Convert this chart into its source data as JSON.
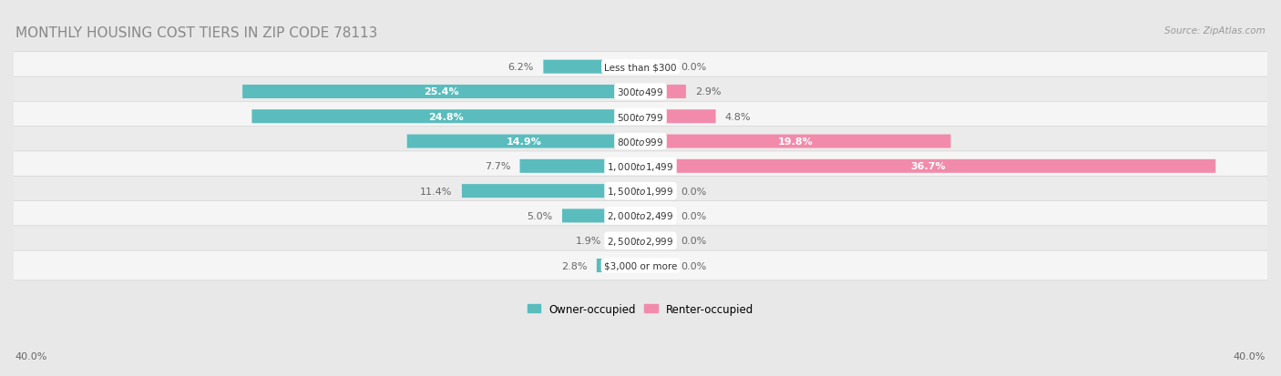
{
  "title": "MONTHLY HOUSING COST TIERS IN ZIP CODE 78113",
  "source": "Source: ZipAtlas.com",
  "categories": [
    "Less than $300",
    "$300 to $499",
    "$500 to $799",
    "$800 to $999",
    "$1,000 to $1,499",
    "$1,500 to $1,999",
    "$2,000 to $2,499",
    "$2,500 to $2,999",
    "$3,000 or more"
  ],
  "owner_values": [
    6.2,
    25.4,
    24.8,
    14.9,
    7.7,
    11.4,
    5.0,
    1.9,
    2.8
  ],
  "renter_values": [
    0.0,
    2.9,
    4.8,
    19.8,
    36.7,
    0.0,
    0.0,
    0.0,
    0.0
  ],
  "renter_stub_values": [
    2.0,
    2.9,
    4.8,
    19.8,
    36.7,
    2.0,
    2.0,
    2.0,
    2.0
  ],
  "owner_color": "#5abcbd",
  "renter_color": "#f28bab",
  "renter_stub_color": "#f5bcd0",
  "owner_label": "Owner-occupied",
  "renter_label": "Renter-occupied",
  "max_value": 40.0,
  "axis_label_left": "40.0%",
  "axis_label_right": "40.0%",
  "background_color": "#e8e8e8",
  "row_bg_odd": "#f5f5f5",
  "row_bg_even": "#ebebeb",
  "title_color": "#888888",
  "source_color": "#999999",
  "label_color_dark": "#666666",
  "title_fontsize": 11,
  "bar_label_fontsize": 8,
  "cat_label_fontsize": 7.5,
  "axis_fontsize": 8
}
